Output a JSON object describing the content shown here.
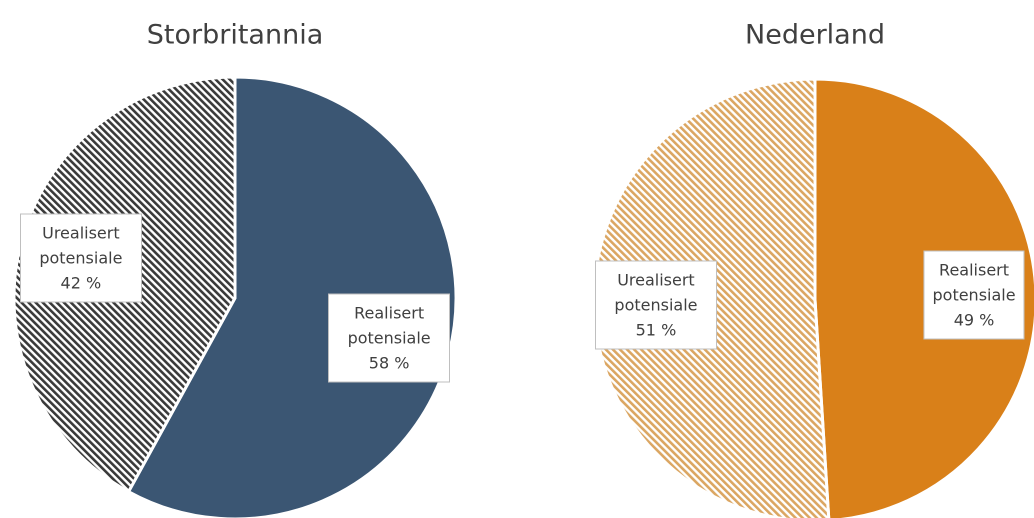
{
  "chart_data": [
    {
      "type": "pie",
      "title": "Storbritannia",
      "categories": [
        "Realisert potensiale",
        "Urealisert potensiale"
      ],
      "values": [
        58,
        42
      ],
      "value_labels": [
        "58 %",
        "42 %"
      ],
      "colors": [
        "#3b5673",
        "#3a3a3a"
      ],
      "hatch": [
        false,
        true
      ]
    },
    {
      "type": "pie",
      "title": "Nederland",
      "categories": [
        "Realisert potensiale",
        "Urealisert potensiale"
      ],
      "values": [
        49,
        51
      ],
      "value_labels": [
        "49 %",
        "51 %"
      ],
      "colors": [
        "#d98019",
        "#dba662"
      ],
      "hatch": [
        false,
        true
      ]
    }
  ]
}
